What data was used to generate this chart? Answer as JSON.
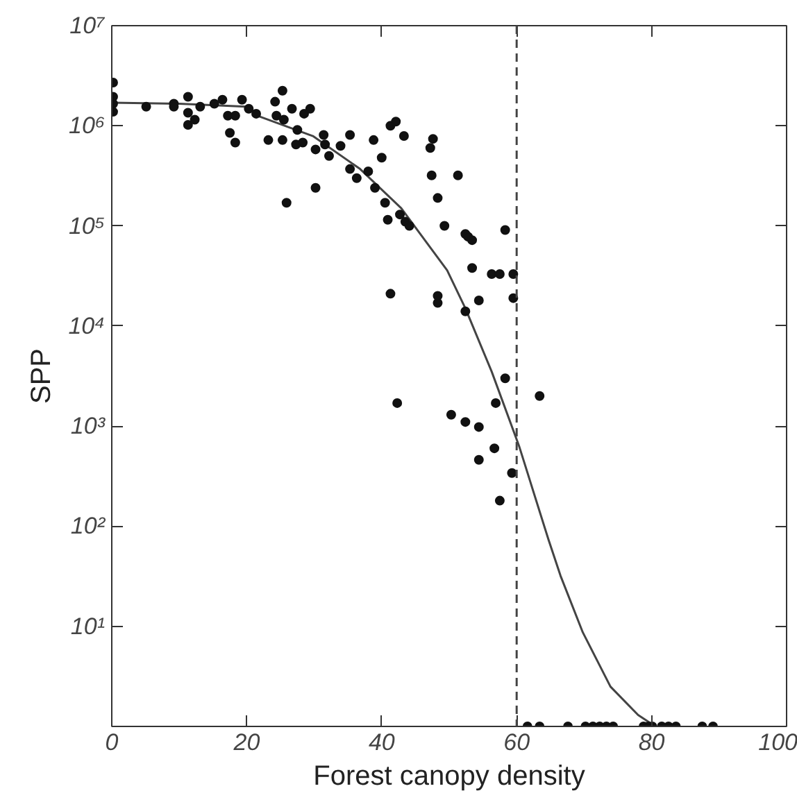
{
  "chart_data": {
    "type": "scatter",
    "xlabel": "Forest canopy density",
    "ylabel": "SPP",
    "xlim": [
      0,
      100
    ],
    "xticks": [
      0,
      20,
      40,
      60,
      80,
      100
    ],
    "ylim": [
      1,
      10000000
    ],
    "log": "y",
    "yticks": [
      {
        "value": 10,
        "label": "10¹"
      },
      {
        "value": 100,
        "label": "10²"
      },
      {
        "value": 1000,
        "label": "10³"
      },
      {
        "value": 10000,
        "label": "10⁴"
      },
      {
        "value": 100000,
        "label": "10⁵"
      },
      {
        "value": 1000000,
        "label": "10⁶"
      },
      {
        "value": 10000000,
        "label": "10⁷"
      }
    ],
    "grid": false,
    "marker": "circle",
    "ref_lines": [
      {
        "axis": "x",
        "value": 60,
        "color": "#444444",
        "line_style": "dashed"
      }
    ],
    "series": [
      {
        "color": "#111111",
        "x": [
          0.2,
          0.2,
          0.2,
          0.2,
          5.1,
          9.2,
          9.2,
          11.3,
          11.3,
          11.3,
          12.3,
          13.1,
          15.2,
          16.4,
          17.2,
          17.5,
          18.3,
          18.3,
          19.3,
          20.3,
          21.4,
          23.2,
          24.2,
          24.4,
          25.3,
          25.3,
          25.5,
          25.9,
          26.7,
          27.5,
          27.3,
          28.3,
          28.5,
          29.4,
          30.2,
          30.2,
          31.4,
          31.6,
          32.2,
          33.9,
          35.3,
          35.3,
          36.3,
          38.0,
          38.8,
          39.0,
          40.0,
          40.5,
          40.9,
          41.3,
          42.1,
          41.3,
          42.7,
          43.3,
          43.5,
          44.1,
          47.2,
          47.6,
          47.4,
          48.3,
          48.3,
          48.3,
          49.3,
          51.3,
          52.4,
          52.8,
          53.4,
          58.3,
          53.4,
          56.3,
          57.5,
          59.5,
          54.4,
          59.5,
          52.4,
          58.3,
          63.4,
          42.3,
          56.9,
          50.3,
          52.4,
          54.4,
          56.7,
          54.4,
          59.3,
          57.5,
          61.6,
          63.4,
          67.6,
          70.2,
          71.3,
          72.3,
          73.3,
          74.3,
          78.8,
          79.5,
          80.1,
          81.5,
          82.5,
          83.6,
          87.5,
          89.1
        ],
        "values": [
          2700000,
          1950000,
          1660000,
          1380000,
          1550000,
          1660000,
          1550000,
          1950000,
          1350000,
          1020000,
          1150000,
          1550000,
          1660000,
          1820000,
          1260000,
          850000,
          1260000,
          680000,
          1820000,
          1480000,
          1320000,
          720000,
          1740000,
          1260000,
          2240000,
          720000,
          1150000,
          170000,
          1480000,
          910000,
          650000,
          680000,
          1320000,
          1480000,
          580000,
          240000,
          810000,
          650000,
          500000,
          630000,
          810000,
          370000,
          300000,
          350000,
          720000,
          240000,
          480000,
          170000,
          115000,
          1000000,
          1100000,
          21000,
          130000,
          790000,
          110000,
          100000,
          600000,
          740000,
          320000,
          190000,
          20000,
          17000,
          100000,
          320000,
          83000,
          78000,
          72000,
          91000,
          38000,
          33000,
          33000,
          33000,
          18000,
          19000,
          14000,
          3000,
          2000,
          1700,
          1700,
          1300,
          1100,
          980,
          600,
          460,
          340,
          180,
          1,
          1,
          1,
          1,
          1,
          1,
          1,
          1,
          1,
          1,
          1,
          1,
          1,
          1,
          1,
          1
        ]
      },
      {
        "type": "line",
        "color": "#444444",
        "marker": "none",
        "line_style": "solid",
        "x": [
          0,
          10,
          20,
          21.6,
          29.8,
          36.8,
          42.9,
          49.7,
          52.4,
          56.3,
          60.4,
          64.7,
          66.5,
          69.8,
          73.9,
          78,
          79.9
        ],
        "values": [
          1700000,
          1660000,
          1550000,
          1260000,
          790000,
          370000,
          150000,
          36000,
          15000,
          3500,
          620,
          74,
          32,
          8.7,
          2.5,
          1.3,
          1.07
        ]
      }
    ]
  }
}
